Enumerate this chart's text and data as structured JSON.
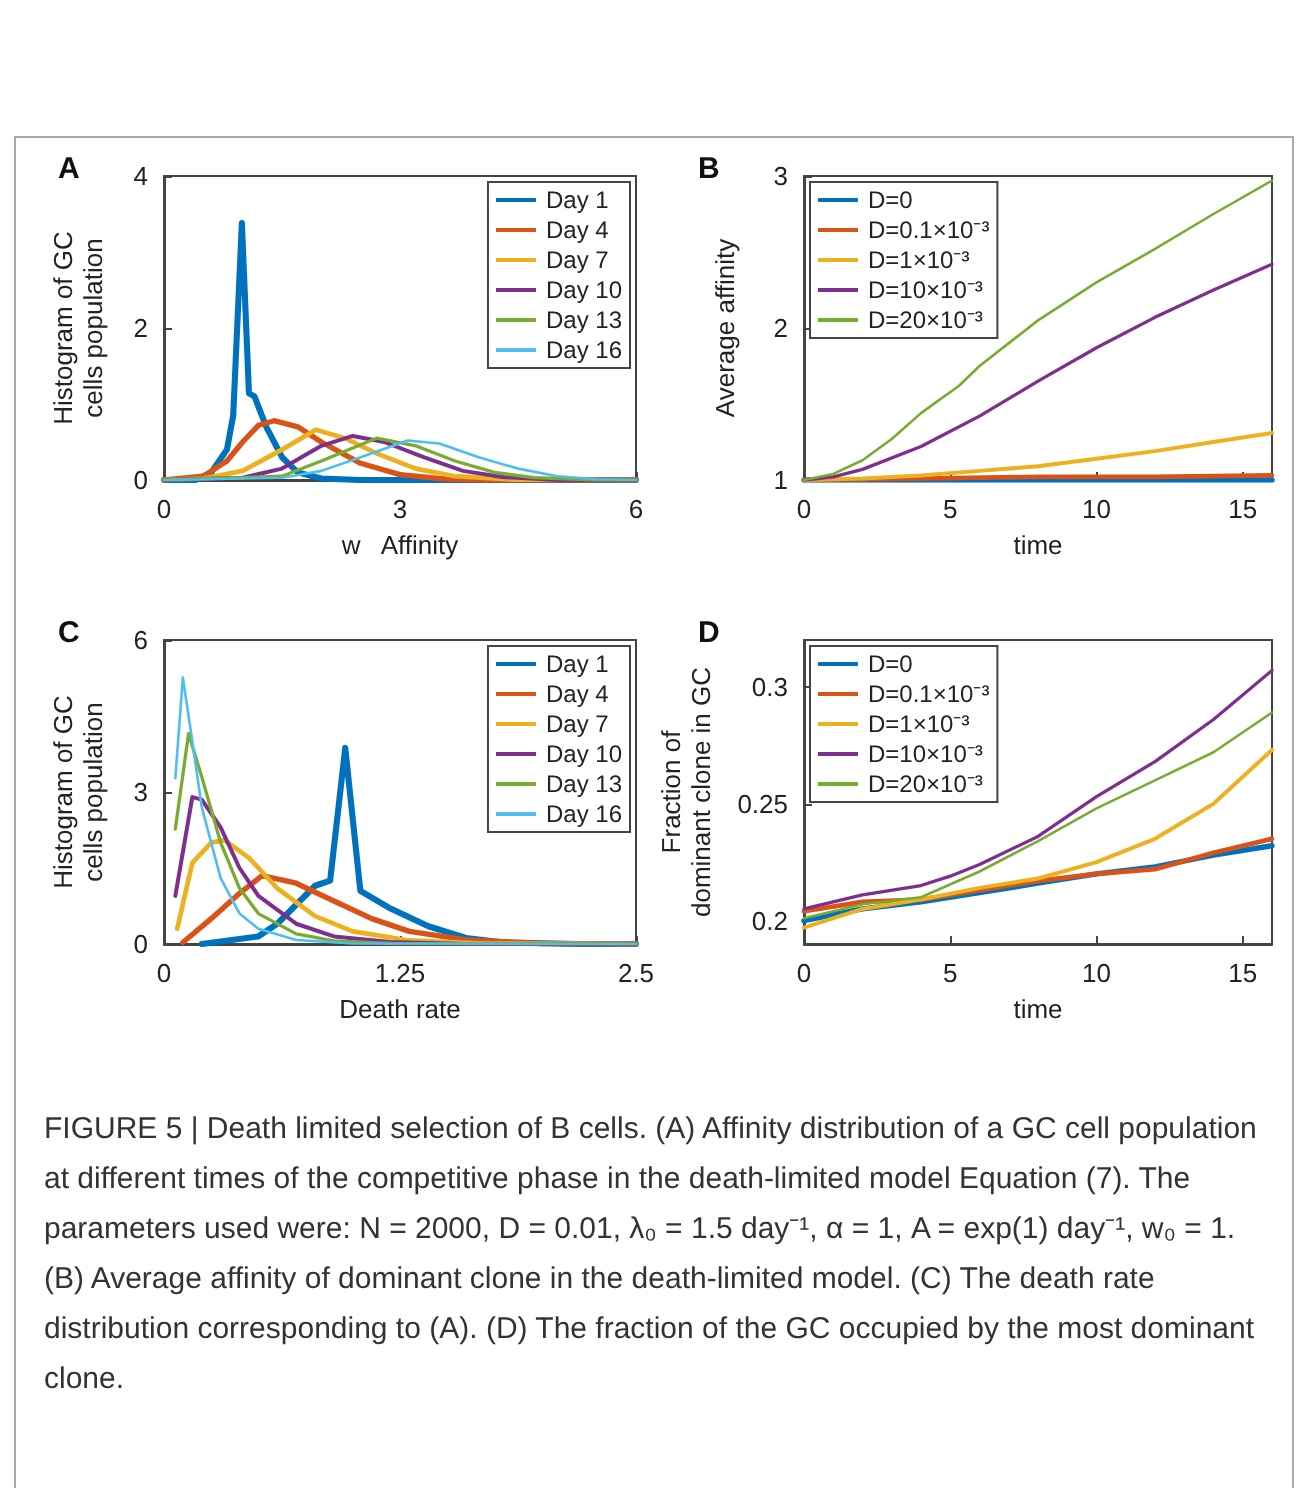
{
  "chart_data": [
    {
      "type": "line",
      "title": "A",
      "xlabel": "w   Affinity",
      "ylabel": "Histogram of GC cells population",
      "xlim": [
        0,
        6
      ],
      "xticks": [
        0,
        3,
        6
      ],
      "ylim": [
        0,
        4
      ],
      "yticks": [
        0,
        2,
        4
      ],
      "grid": false,
      "legend": "top right",
      "marker": "none",
      "series": [
        {
          "name": "Day 1",
          "color": "#0072bd",
          "x": [
            0,
            0.4,
            0.6,
            0.8,
            0.88,
            0.99,
            1.08,
            1.15,
            1.3,
            1.5,
            1.7,
            2,
            2.5,
            6
          ],
          "values": [
            0,
            0,
            0.1,
            0.4,
            0.85,
            3.38,
            1.14,
            1.1,
            0.7,
            0.3,
            0.1,
            0.02,
            0,
            0
          ]
        },
        {
          "name": "Day 4",
          "color": "#d95319",
          "x": [
            0,
            0.5,
            0.8,
            1,
            1.2,
            1.4,
            1.7,
            2,
            2.5,
            3,
            3.5,
            4,
            6
          ],
          "values": [
            0,
            0.05,
            0.25,
            0.5,
            0.72,
            0.78,
            0.7,
            0.5,
            0.22,
            0.07,
            0.02,
            0,
            0
          ]
        },
        {
          "name": "Day 7",
          "color": "#edb120",
          "x": [
            0,
            0.5,
            1,
            1.5,
            1.93,
            2.3,
            2.7,
            3.2,
            3.7,
            4.5,
            6
          ],
          "values": [
            0,
            0.02,
            0.12,
            0.4,
            0.66,
            0.55,
            0.35,
            0.15,
            0.05,
            0,
            0
          ]
        },
        {
          "name": "Day 10",
          "color": "#7e2f8e",
          "x": [
            0,
            1,
            1.5,
            2,
            2.4,
            2.8,
            3.3,
            3.8,
            4.3,
            5,
            6
          ],
          "values": [
            0,
            0.03,
            0.15,
            0.45,
            0.58,
            0.5,
            0.3,
            0.12,
            0.04,
            0,
            0
          ]
        },
        {
          "name": "Day 13",
          "color": "#77ac30",
          "x": [
            0,
            1.5,
            2,
            2.7,
            3.2,
            3.7,
            4.2,
            4.7,
            5.5,
            6
          ],
          "values": [
            0,
            0.05,
            0.25,
            0.55,
            0.45,
            0.25,
            0.1,
            0.03,
            0,
            0
          ]
        },
        {
          "name": "Day 16",
          "color": "#4dbeee",
          "x": [
            0,
            1.5,
            2,
            2.5,
            3.1,
            3.5,
            4,
            4.5,
            5,
            5.5,
            6
          ],
          "values": [
            0,
            0.03,
            0.12,
            0.3,
            0.52,
            0.48,
            0.3,
            0.15,
            0.05,
            0.01,
            0
          ]
        }
      ]
    },
    {
      "type": "line",
      "title": "B",
      "xlabel": "time",
      "ylabel": "Average affinity",
      "xlim": [
        0,
        16
      ],
      "xticks": [
        0,
        5,
        10,
        15
      ],
      "ylim": [
        1,
        3
      ],
      "yticks": [
        1,
        2,
        3
      ],
      "grid": false,
      "legend": "top left",
      "marker": "none",
      "series": [
        {
          "name": "D=0",
          "color": "#0072bd",
          "x": [
            0,
            4,
            8,
            12,
            16
          ],
          "values": [
            1,
            1,
            1,
            1,
            1
          ]
        },
        {
          "name": "D=0.1×10⁻³",
          "color": "#d95319",
          "x": [
            0,
            4,
            8,
            12,
            16
          ],
          "values": [
            1,
            1.01,
            1.02,
            1.02,
            1.03
          ]
        },
        {
          "name": "D=1×10⁻³",
          "color": "#edb120",
          "x": [
            0,
            2,
            4,
            6,
            8,
            10,
            12,
            14,
            16
          ],
          "values": [
            1,
            1.01,
            1.03,
            1.06,
            1.09,
            1.14,
            1.19,
            1.25,
            1.31
          ]
        },
        {
          "name": "D=10×10⁻³",
          "color": "#7e2f8e",
          "x": [
            0,
            1,
            2,
            4,
            6,
            8,
            10,
            12,
            14,
            16
          ],
          "values": [
            1,
            1.02,
            1.07,
            1.22,
            1.42,
            1.65,
            1.87,
            2.07,
            2.25,
            2.42
          ]
        },
        {
          "name": "D=20×10⁻³",
          "color": "#77ac30",
          "x": [
            0,
            1,
            2,
            3,
            4,
            5.3,
            6,
            8,
            10,
            12,
            14,
            16
          ],
          "values": [
            1,
            1.04,
            1.13,
            1.27,
            1.44,
            1.62,
            1.75,
            2.05,
            2.3,
            2.52,
            2.75,
            2.97
          ]
        }
      ]
    },
    {
      "type": "line",
      "title": "C",
      "xlabel": "Death rate",
      "ylabel": "Histogram of GC cells population",
      "xlim": [
        0,
        2.5
      ],
      "xticks": [
        0,
        1.25,
        2.5
      ],
      "ylim": [
        0,
        6
      ],
      "yticks": [
        0,
        3,
        6
      ],
      "grid": false,
      "legend": "top right",
      "marker": "none",
      "series": [
        {
          "name": "Day 1",
          "color": "#0072bd",
          "x": [
            0.2,
            0.5,
            0.6,
            0.8,
            0.88,
            0.96,
            1.04,
            1.2,
            1.4,
            1.6,
            1.8,
            2.2,
            2.5
          ],
          "values": [
            0,
            0.15,
            0.4,
            1.15,
            1.25,
            3.87,
            1.05,
            0.7,
            0.35,
            0.12,
            0.03,
            0,
            0
          ]
        },
        {
          "name": "Day 4",
          "color": "#d95319",
          "x": [
            0.1,
            0.25,
            0.4,
            0.52,
            0.7,
            0.9,
            1.1,
            1.3,
            1.6,
            2,
            2.5
          ],
          "values": [
            0.03,
            0.5,
            1,
            1.35,
            1.2,
            0.85,
            0.5,
            0.25,
            0.08,
            0.01,
            0
          ]
        },
        {
          "name": "Day 7",
          "color": "#edb120",
          "x": [
            0.07,
            0.15,
            0.25,
            0.32,
            0.45,
            0.6,
            0.8,
            1,
            1.3,
            1.7,
            2.5
          ],
          "values": [
            0.3,
            1.6,
            2,
            2.05,
            1.7,
            1.1,
            0.55,
            0.25,
            0.07,
            0.01,
            0
          ]
        },
        {
          "name": "Day 10",
          "color": "#7e2f8e",
          "x": [
            0.06,
            0.15,
            0.2,
            0.3,
            0.4,
            0.5,
            0.7,
            0.9,
            1.2,
            1.6,
            2.5
          ],
          "values": [
            0.95,
            2.9,
            2.85,
            2.3,
            1.5,
            0.95,
            0.4,
            0.15,
            0.04,
            0,
            0
          ]
        },
        {
          "name": "Day 13",
          "color": "#77ac30",
          "x": [
            0.06,
            0.13,
            0.2,
            0.3,
            0.4,
            0.5,
            0.7,
            0.9,
            1.2,
            2.5
          ],
          "values": [
            2.27,
            4.15,
            3.3,
            2,
            1.1,
            0.6,
            0.2,
            0.06,
            0.01,
            0
          ]
        },
        {
          "name": "Day 16",
          "color": "#4dbeee",
          "x": [
            0.06,
            0.1,
            0.15,
            0.2,
            0.3,
            0.4,
            0.5,
            0.7,
            1,
            2.5
          ],
          "values": [
            3.27,
            5.26,
            4,
            2.7,
            1.3,
            0.6,
            0.3,
            0.08,
            0.01,
            0
          ]
        }
      ]
    },
    {
      "type": "line",
      "title": "D",
      "xlabel": "time",
      "ylabel": "Fraction of dominant clone in GC",
      "xlim": [
        0,
        16
      ],
      "xticks": [
        0,
        5,
        10,
        15
      ],
      "ylim": [
        0.19,
        0.32
      ],
      "yticks": [
        0.2,
        0.25,
        0.3
      ],
      "grid": false,
      "legend": "top left",
      "marker": "none",
      "annotations": [
        "FIGURE 5 | Death limited selection of B cells. (A) Affinity distribution of a GC cell population at different times of the competitive phase in the death-limited model Equation (7). The parameters used were: N = 2000, D = 0.01, λ₀ = 1.5 day⁻¹, α = 1, A = exp(1) day⁻¹, w₀ = 1. (B) Average affinity of dominant clone in the death-limited model. (C) The death rate distribution corresponding to (A). (D) The fraction of the GC occupied by the most dominant clone."
      ],
      "series": [
        {
          "name": "D=0",
          "color": "#0072bd",
          "x": [
            0,
            2,
            4,
            6,
            8,
            10,
            12,
            14,
            16
          ],
          "values": [
            0.2,
            0.205,
            0.208,
            0.212,
            0.216,
            0.22,
            0.223,
            0.228,
            0.232
          ]
        },
        {
          "name": "D=0.1×10⁻³",
          "color": "#d95319",
          "x": [
            0,
            2,
            4,
            6,
            8,
            10,
            12,
            14,
            16
          ],
          "values": [
            0.204,
            0.208,
            0.209,
            0.213,
            0.217,
            0.22,
            0.222,
            0.229,
            0.235
          ]
        },
        {
          "name": "D=1×10⁻³",
          "color": "#edb120",
          "x": [
            0,
            2,
            4,
            6,
            8,
            10,
            12,
            14,
            16
          ],
          "values": [
            0.197,
            0.205,
            0.209,
            0.214,
            0.218,
            0.225,
            0.235,
            0.25,
            0.273
          ]
        },
        {
          "name": "D=10×10⁻³",
          "color": "#7e2f8e",
          "x": [
            0,
            2,
            4,
            5,
            6,
            8,
            10,
            12,
            14,
            16
          ],
          "values": [
            0.205,
            0.211,
            0.215,
            0.219,
            0.224,
            0.236,
            0.253,
            0.268,
            0.286,
            0.307
          ]
        },
        {
          "name": "D=20×10⁻³",
          "color": "#77ac30",
          "x": [
            0,
            2,
            4,
            6,
            8,
            10,
            12,
            14,
            16
          ],
          "values": [
            0.201,
            0.207,
            0.21,
            0.221,
            0.234,
            0.248,
            0.26,
            0.272,
            0.289
          ]
        }
      ]
    }
  ]
}
